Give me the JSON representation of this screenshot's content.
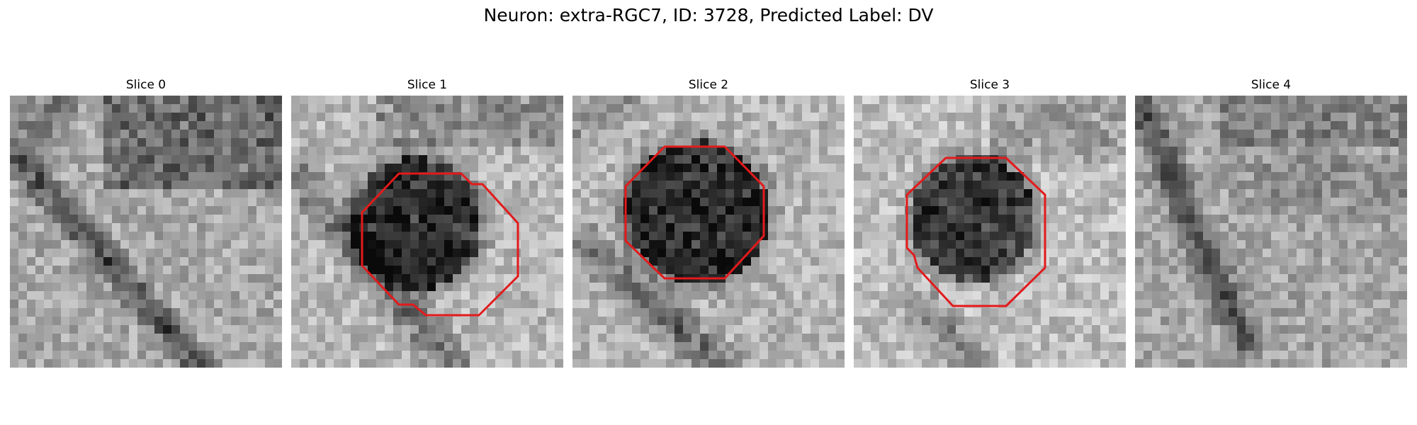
{
  "title": "Neuron: extra-RGC7, ID: 3728, Predicted Label: DV",
  "colors": {
    "contour": "#e31a1c",
    "background": "#ffffff"
  },
  "panels": [
    {
      "label": "Slice 0",
      "contour": false
    },
    {
      "label": "Slice 1",
      "contour": true
    },
    {
      "label": "Slice 2",
      "contour": true
    },
    {
      "label": "Slice 3",
      "contour": true
    },
    {
      "label": "Slice 4",
      "contour": false
    }
  ]
}
